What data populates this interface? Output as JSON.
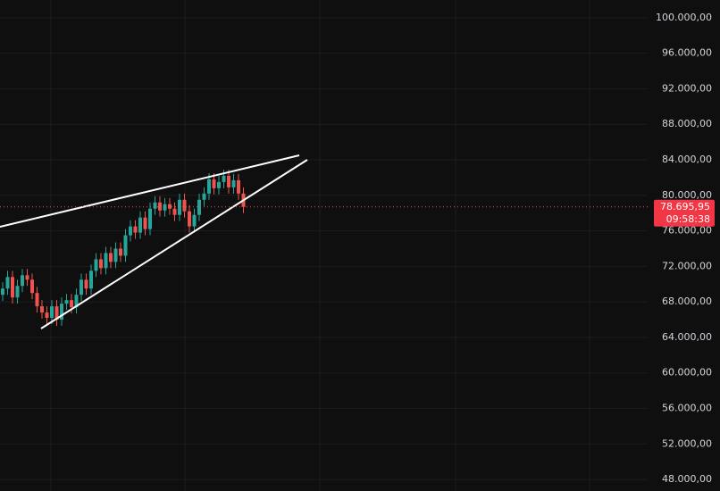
{
  "chart_data": {
    "type": "candlestick",
    "open": [
      68800,
      69500,
      70800,
      68500,
      69800,
      71000,
      70500,
      69000,
      67500,
      66800,
      66200,
      67500,
      66000,
      67800,
      68200,
      67400,
      68800,
      70500,
      69500,
      71500,
      72800,
      71800,
      73500,
      72500,
      74000,
      73200,
      75500,
      76500,
      75800,
      77500,
      76200,
      78500,
      79200,
      78300,
      79000,
      78500,
      77800,
      79500,
      78200,
      76500,
      77800,
      79500,
      80200,
      81800,
      80800,
      81500,
      82200,
      80900,
      81700,
      80200
    ],
    "high": [
      70200,
      71500,
      71500,
      70500,
      71700,
      71700,
      71200,
      69700,
      68200,
      67500,
      68200,
      68200,
      68500,
      68900,
      68900,
      69500,
      71200,
      71200,
      72200,
      73500,
      73500,
      74200,
      74200,
      74700,
      74700,
      76200,
      77200,
      77200,
      78200,
      78200,
      79200,
      79900,
      79900,
      79700,
      79700,
      79200,
      80200,
      80200,
      78900,
      78500,
      80200,
      80900,
      82500,
      82500,
      82200,
      82900,
      82900,
      82400,
      82400,
      80900
    ],
    "low": [
      68100,
      68800,
      67800,
      67800,
      69100,
      69800,
      68300,
      66800,
      66100,
      65500,
      65500,
      65300,
      65300,
      67100,
      66700,
      66700,
      68100,
      68800,
      68800,
      70800,
      71100,
      71100,
      71800,
      71800,
      72500,
      72500,
      74800,
      75100,
      75100,
      75500,
      75500,
      77800,
      77600,
      77600,
      77800,
      77100,
      77100,
      77500,
      75800,
      75800,
      77100,
      78800,
      79500,
      80100,
      80100,
      80800,
      80200,
      80200,
      79500,
      77996
    ],
    "close": [
      69500,
      70800,
      68500,
      69800,
      71000,
      70500,
      69000,
      67500,
      66800,
      66200,
      67500,
      66000,
      67800,
      68200,
      67400,
      68800,
      70500,
      69500,
      71500,
      72800,
      71800,
      73500,
      72500,
      74000,
      73200,
      75500,
      76500,
      75800,
      77500,
      76200,
      78500,
      79200,
      78300,
      79000,
      78500,
      77800,
      79500,
      78200,
      76500,
      77800,
      79500,
      80200,
      81800,
      80800,
      81500,
      82200,
      80900,
      81700,
      80200,
      78695.95
    ],
    "up_color": "#26a69a",
    "down_color": "#ef5350",
    "ylim": [
      46700,
      102000
    ],
    "yticks": [
      {
        "value": 100000,
        "label": "100.000,00"
      },
      {
        "value": 96000,
        "label": "96.000,00"
      },
      {
        "value": 92000,
        "label": "92.000,00"
      },
      {
        "value": 88000,
        "label": "88.000,00"
      },
      {
        "value": 84000,
        "label": "84.000,00"
      },
      {
        "value": 80000,
        "label": "80.000,00"
      },
      {
        "value": 76000,
        "label": "76.000,00"
      },
      {
        "value": 72000,
        "label": "72.000,00"
      },
      {
        "value": 68000,
        "label": "68.000,00"
      },
      {
        "value": 64000,
        "label": "64.000,00"
      },
      {
        "value": 60000,
        "label": "60.000,00"
      },
      {
        "value": 56000,
        "label": "56.000,00"
      },
      {
        "value": 52000,
        "label": "52.000,00"
      },
      {
        "value": 48000,
        "label": "48.000,00"
      }
    ],
    "last_price": {
      "value": 78695.95,
      "label": "78.695,95"
    },
    "countdown": "09:58:38",
    "grid": true
  }
}
